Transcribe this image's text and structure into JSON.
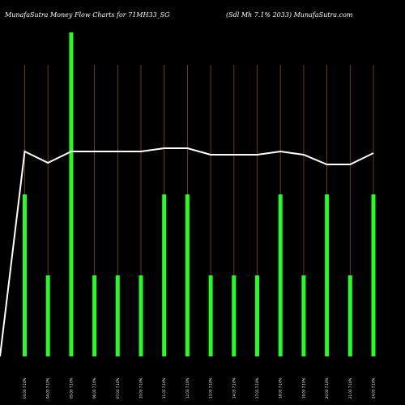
{
  "header": {
    "left": "MunafaSutra  Money Flow  Charts for 71MH33_SG",
    "right": "(Sdl Mh 7.1% 2033) MunafaSutra.com"
  },
  "colors": {
    "background": "#000000",
    "bar": "#22ff22",
    "line": "#ffffff",
    "gridline": "#8a4a10"
  },
  "chart_data": {
    "type": "bar",
    "title": "",
    "categories": [
      "03.03 7.10%",
      "04.03 7.10%",
      "05.03 7.10%",
      "06.03 7.10%",
      "07.03 7.10%",
      "10.03 7.10%",
      "11.03 7.10%",
      "12.03 7.10%",
      "13.03 7.10%",
      "14.03 7.10%",
      "17.03 7.10%",
      "18.03 7.10%",
      "19.03 7.10%",
      "20.03 7.10%",
      "21.03 7.10%",
      "24.03 7.10%"
    ],
    "series": [
      {
        "type": "bar",
        "values": [
          2,
          1,
          4,
          1,
          1,
          1,
          2,
          2,
          1,
          1,
          1,
          2,
          1,
          2,
          1,
          2
        ]
      },
      {
        "type": "line",
        "values": [
          7.2,
          6.85,
          7.2,
          7.2,
          7.2,
          7.2,
          7.3,
          7.3,
          7.1,
          7.1,
          7.1,
          7.2,
          7.1,
          6.8,
          6.8,
          7.15
        ]
      }
    ],
    "line_start_value": 0,
    "ylim": [
      0,
      4
    ],
    "grid": "vertical"
  }
}
